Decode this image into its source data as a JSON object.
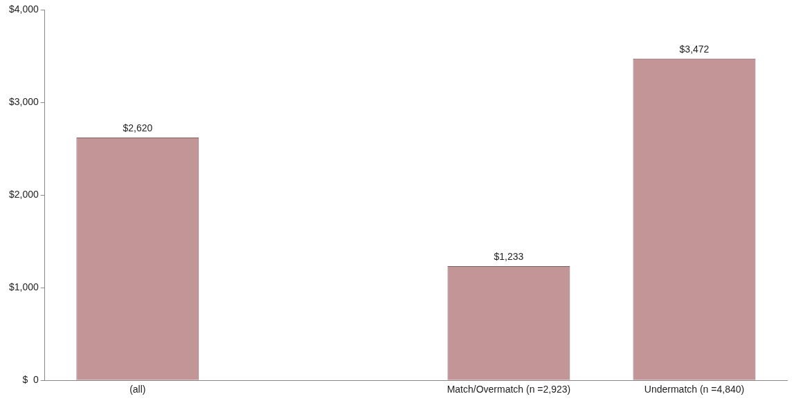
{
  "chart_data": {
    "type": "bar",
    "categories": [
      "(all)",
      null,
      "Match/Overmatch (n =2,923)",
      "Undermatch (n =4,840)"
    ],
    "values": [
      2620,
      null,
      1233,
      3472
    ],
    "value_labels": [
      "$2,620",
      null,
      "$1,233",
      "$3,472"
    ],
    "color": "#c29596",
    "ylim": [
      0,
      4000
    ],
    "yticks": [
      {
        "value": 0,
        "label": "$  0"
      },
      {
        "value": 1000,
        "label": "$1,000"
      },
      {
        "value": 2000,
        "label": "$2,000"
      },
      {
        "value": 3000,
        "label": "$3,000"
      },
      {
        "value": 4000,
        "label": "$4,000"
      }
    ],
    "grid": false,
    "legend": false
  }
}
